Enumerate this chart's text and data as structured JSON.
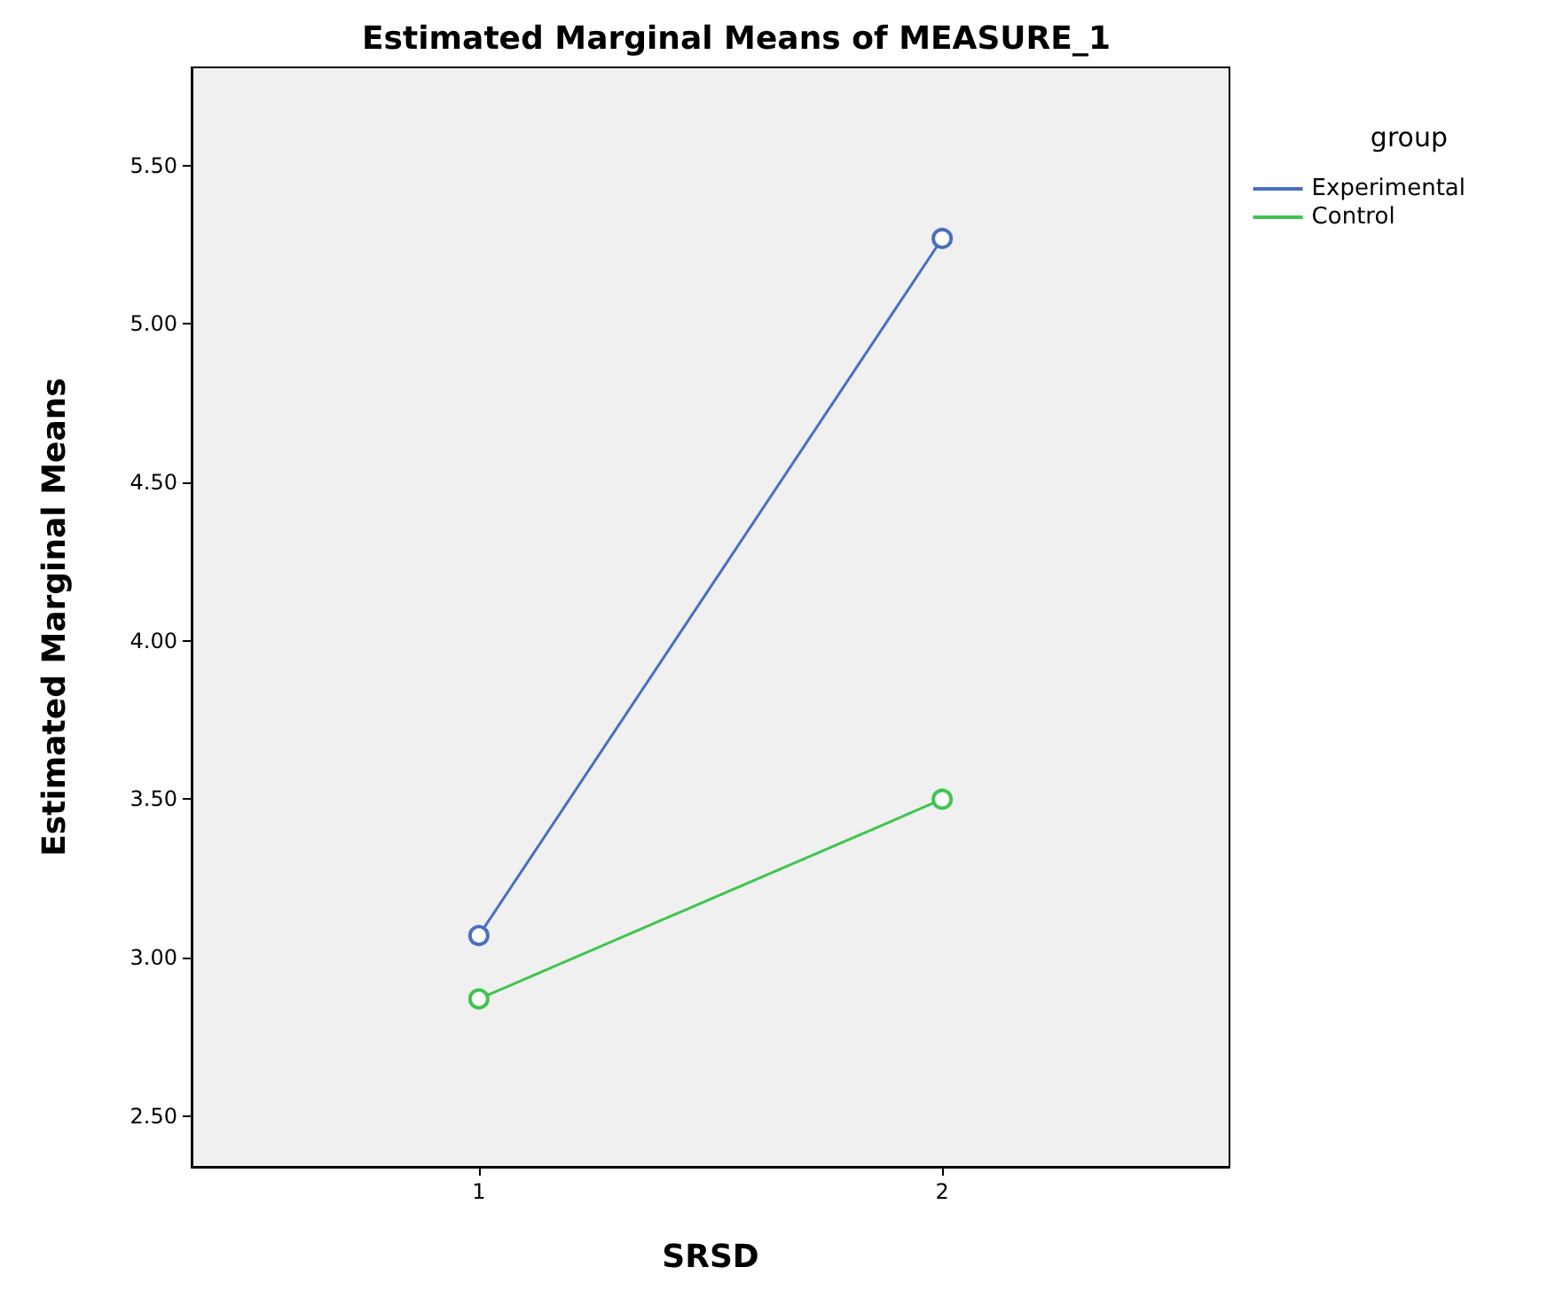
{
  "chart_data": {
    "type": "line",
    "title": "Estimated Marginal Means of MEASURE_1",
    "xlabel": "SRSD",
    "ylabel": "Estimated Marginal Means",
    "legend_title": "group",
    "x": [
      1,
      2
    ],
    "xlim": [
      0.38,
      2.62
    ],
    "xticks": [
      1,
      2
    ],
    "ylim": [
      2.34,
      5.81
    ],
    "yticks": [
      {
        "value": 2.5,
        "label": "2.50"
      },
      {
        "value": 3,
        "label": "3.00"
      },
      {
        "value": 3.5,
        "label": "3.50"
      },
      {
        "value": 4,
        "label": "4.00"
      },
      {
        "value": 4.5,
        "label": "4.50"
      },
      {
        "value": 5,
        "label": "5.00"
      },
      {
        "value": 5.5,
        "label": "5.50"
      }
    ],
    "series": [
      {
        "name": "Experimental",
        "color": "#4a6fc0",
        "values": [
          3.07,
          5.27
        ]
      },
      {
        "name": "Control",
        "color": "#3ec54f",
        "values": [
          2.87,
          3.5
        ]
      }
    ],
    "marker": "circle",
    "line_style": "solid",
    "grid": false,
    "legend": "top right"
  }
}
